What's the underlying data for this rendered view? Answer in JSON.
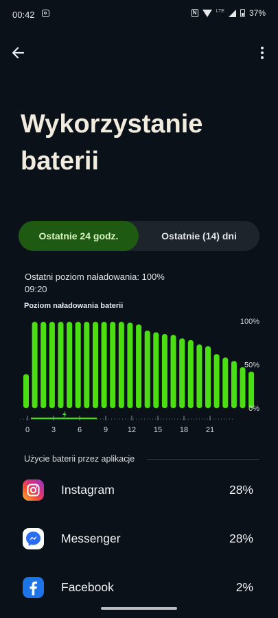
{
  "status_bar": {
    "time": "00:42",
    "network": "LTE",
    "battery": "37%"
  },
  "page": {
    "title_line1": "Wykorzystanie",
    "title_line2": "baterii"
  },
  "tabs": {
    "active": "Ostatnie 24 godz.",
    "inactive": "Ostatnie (14) dni"
  },
  "last_charge": {
    "text": "Ostatni poziom naładowania: 100%",
    "time": "09:20"
  },
  "chart_data": {
    "type": "bar",
    "title": "Poziom naładowania baterii",
    "x_ticks": [
      "0",
      "3",
      "6",
      "9",
      "12",
      "15",
      "18",
      "21"
    ],
    "y_ticks": [
      "100%",
      "50%",
      "0%"
    ],
    "ylim": [
      0,
      100
    ],
    "bar_color": "#4bde12",
    "values": [
      39,
      99,
      99,
      99,
      99,
      99,
      99,
      99,
      99,
      99,
      99,
      99,
      98,
      96,
      89,
      87,
      85,
      84,
      80,
      78,
      73,
      71,
      62,
      58,
      54,
      47,
      42
    ],
    "charging_range_hours": [
      0,
      8
    ]
  },
  "usage": {
    "header": "Użycie baterii przez aplikacje",
    "apps": [
      {
        "name": "Instagram",
        "percent": "28%",
        "icon": "instagram-icon"
      },
      {
        "name": "Messenger",
        "percent": "28%",
        "icon": "messenger-icon"
      },
      {
        "name": "Facebook",
        "percent": "2%",
        "icon": "facebook-icon"
      }
    ]
  }
}
